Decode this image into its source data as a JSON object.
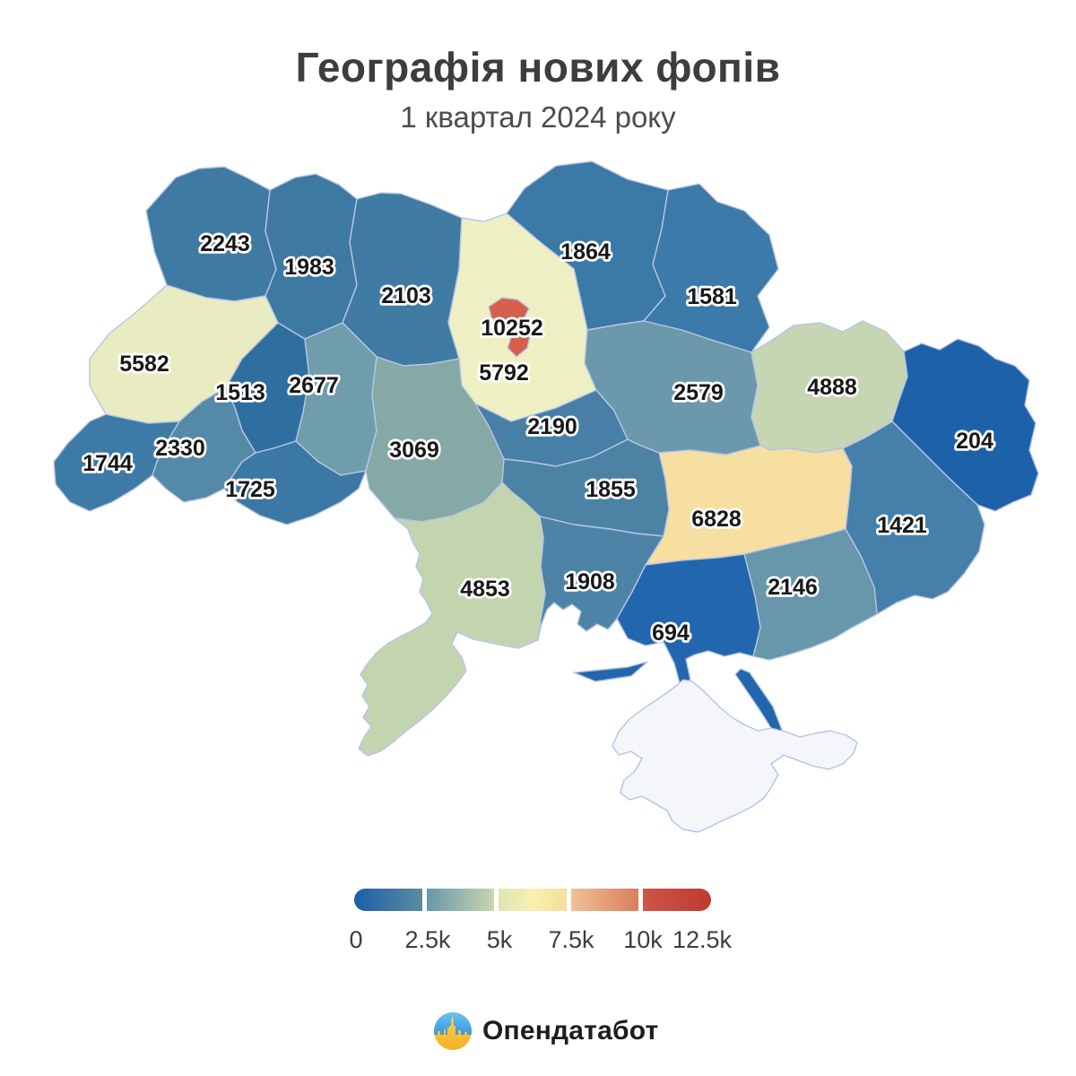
{
  "header": {
    "title": "Географія нових фопів",
    "subtitle": "1 квартал 2024 року"
  },
  "chart_data": {
    "type": "choropleth_map",
    "title": "Географія нових фопів",
    "subtitle": "1 квартал 2024 року",
    "area": "Ukraine by region",
    "value_meaning": "new sole proprietors (FOPs) registered, Q1 2024",
    "regions": [
      {
        "id": "volyn",
        "value": 2243,
        "color": "#3f7aa2"
      },
      {
        "id": "rivne",
        "value": 1983,
        "color": "#3e79a1"
      },
      {
        "id": "zhytomyr",
        "value": 2103,
        "color": "#3f7ba3"
      },
      {
        "id": "chernihiv",
        "value": 1864,
        "color": "#3b79a6"
      },
      {
        "id": "sumy",
        "value": 1581,
        "color": "#3b7aa9"
      },
      {
        "id": "lviv",
        "value": 5582,
        "color": "#e9ecc1"
      },
      {
        "id": "ternopil",
        "value": 1513,
        "color": "#2f6f9f"
      },
      {
        "id": "khmelnytskyi",
        "value": 2677,
        "color": "#6f9dac"
      },
      {
        "id": "kyiv-oblast",
        "value": 5792,
        "color": "#eef0c4"
      },
      {
        "id": "kyiv-city",
        "value": 10252,
        "color": "#d6604d"
      },
      {
        "id": "vinnytsia",
        "value": 3069,
        "color": "#85a9a4"
      },
      {
        "id": "cherkasy",
        "value": 2190,
        "color": "#477fa7"
      },
      {
        "id": "poltava",
        "value": 2579,
        "color": "#6b98ab"
      },
      {
        "id": "kharkiv",
        "value": 4888,
        "color": "#c6d5b2"
      },
      {
        "id": "luhansk",
        "value": 204,
        "color": "#1d61a9"
      },
      {
        "id": "donetsk",
        "value": 1421,
        "color": "#4580ab"
      },
      {
        "id": "dnipro",
        "value": 6828,
        "color": "#f7dfa2"
      },
      {
        "id": "kirovohrad",
        "value": 1855,
        "color": "#4c83a5"
      },
      {
        "id": "zaporizhzhia",
        "value": 2146,
        "color": "#6896aa"
      },
      {
        "id": "mykolaiv",
        "value": 1908,
        "color": "#4d83a7"
      },
      {
        "id": "odesa",
        "value": 4853,
        "color": "#c3d5ae"
      },
      {
        "id": "zakarpattia",
        "value": 1744,
        "color": "#3d7ba6"
      },
      {
        "id": "ivano-frankivsk",
        "value": 2330,
        "color": "#5589a8"
      },
      {
        "id": "chernivtsi",
        "value": 1725,
        "color": "#3b78a4"
      },
      {
        "id": "kherson",
        "value": 694,
        "color": "#2267ad"
      },
      {
        "id": "crimea",
        "value": null,
        "color": "#f4f6f9"
      }
    ],
    "colorbar": {
      "min": 0,
      "max": 12500,
      "ticks": [
        "0",
        "2.5k",
        "5k",
        "7.5k",
        "10k",
        "12.5k"
      ],
      "segments": [
        [
          "#1a5fa6",
          "#5d8ba3"
        ],
        [
          "#6697ab",
          "#c9d6b0"
        ],
        [
          "#dfe5b5",
          "#f8f0b0",
          "#f6dd9c"
        ],
        [
          "#f0c195",
          "#d87f5e"
        ],
        [
          "#cc5747",
          "#bf3a31"
        ]
      ]
    }
  },
  "footer": {
    "logo_text": "Опендатабот"
  }
}
